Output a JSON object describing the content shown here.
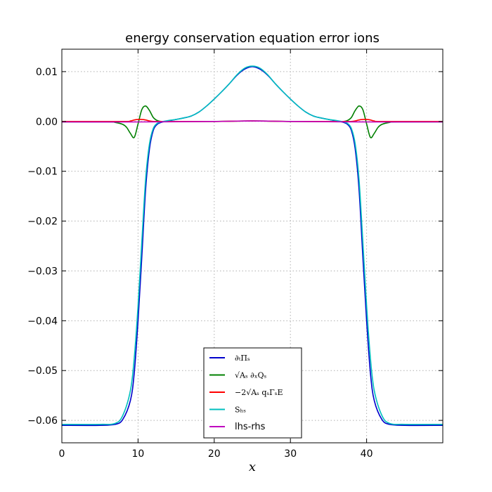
{
  "chart_data": {
    "type": "line",
    "title": "energy conservation equation error ions",
    "xlabel": "x",
    "ylabel": "",
    "xlim": [
      0,
      50
    ],
    "ylim": [
      -0.0645,
      0.0145
    ],
    "xticks": [
      0,
      10,
      20,
      30,
      40
    ],
    "xtick_labels": [
      "0",
      "10",
      "20",
      "30",
      "40"
    ],
    "yticks": [
      0.01,
      0.0,
      -0.01,
      -0.02,
      -0.03,
      -0.04,
      -0.05,
      -0.06
    ],
    "ytick_labels": [
      "0.01",
      "0.00",
      "−0.01",
      "−0.02",
      "−0.03",
      "−0.04",
      "−0.05",
      "−0.06"
    ],
    "grid": true,
    "legend_position": "lower-center",
    "series": [
      {
        "name": "∂ₜΠₛ",
        "color": "#0000cc",
        "x": [
          0,
          5,
          7,
          8,
          9,
          9.5,
          10,
          10.5,
          11,
          11.5,
          12,
          12.5,
          13,
          14,
          15,
          16,
          17,
          18,
          19,
          20,
          21,
          22,
          23,
          24,
          25,
          26,
          27,
          28,
          29,
          30,
          31,
          32,
          33,
          34,
          35,
          36,
          37,
          37.5,
          38,
          38.5,
          39,
          39.5,
          40,
          40.5,
          41,
          42,
          43,
          45,
          50
        ],
        "y": [
          -0.061,
          -0.061,
          -0.0608,
          -0.0598,
          -0.056,
          -0.0505,
          -0.04,
          -0.027,
          -0.0135,
          -0.0055,
          -0.0018,
          -0.0006,
          -0.0002,
          0.0001,
          0.0004,
          0.0007,
          0.0011,
          0.0019,
          0.0031,
          0.0045,
          0.006,
          0.0076,
          0.0093,
          0.0105,
          0.011,
          0.0105,
          0.0093,
          0.0076,
          0.006,
          0.0045,
          0.0031,
          0.0019,
          0.0011,
          0.0007,
          0.0004,
          0.0001,
          -0.0002,
          -0.0006,
          -0.0018,
          -0.0055,
          -0.0135,
          -0.027,
          -0.04,
          -0.0505,
          -0.056,
          -0.0598,
          -0.0608,
          -0.061,
          -0.061
        ]
      },
      {
        "name": "√Aₛ ∂ₓQₛ",
        "color": "#008000",
        "x": [
          0,
          6,
          7,
          8,
          8.5,
          9,
          9.5,
          10,
          10.5,
          11,
          11.5,
          12,
          12.5,
          13,
          14,
          15,
          20,
          25,
          30,
          35,
          36,
          37,
          37.5,
          38,
          38.5,
          39,
          39.5,
          40,
          40.5,
          41,
          41.5,
          42,
          43,
          44,
          50
        ],
        "y": [
          -0.0001,
          -0.0001,
          -0.0002,
          -0.0006,
          -0.0012,
          -0.0024,
          -0.0032,
          -0.0005,
          0.0024,
          0.0031,
          0.0022,
          0.0008,
          0.0002,
          0.0,
          0.0,
          0.0,
          0.0,
          0.0001,
          0.0,
          0.0,
          0.0,
          0.0,
          0.0002,
          0.0008,
          0.0022,
          0.0031,
          0.0024,
          -0.0005,
          -0.0032,
          -0.0024,
          -0.0012,
          -0.0006,
          -0.0002,
          -0.0001,
          -0.0001
        ]
      },
      {
        "name": "−2√Aₛ qₛΓₛE",
        "color": "#ff0000",
        "x": [
          0,
          8,
          9,
          9.5,
          10,
          10.5,
          11,
          11.5,
          12,
          13,
          20,
          25,
          30,
          37,
          38,
          38.5,
          39,
          39.5,
          40,
          40.5,
          41,
          42,
          50
        ],
        "y": [
          0.0,
          0.0,
          0.0001,
          0.0003,
          0.0004,
          0.0004,
          0.0003,
          0.0001,
          0.0,
          0.0,
          0.0,
          0.0001,
          0.0,
          0.0,
          0.0,
          0.0001,
          0.0003,
          0.0004,
          0.0004,
          0.0003,
          0.0001,
          0.0,
          0.0
        ]
      },
      {
        "name": "Sₕₛ",
        "color": "#00bfbf",
        "x": [
          0,
          5,
          7,
          8,
          9,
          9.5,
          10,
          10.5,
          11,
          11.5,
          12,
          12.5,
          13,
          14,
          15,
          16,
          17,
          18,
          19,
          20,
          21,
          22,
          23,
          24,
          25,
          26,
          27,
          28,
          29,
          30,
          31,
          32,
          33,
          34,
          35,
          36,
          37,
          37.5,
          38,
          38.5,
          39,
          39.5,
          40,
          40.5,
          41,
          42,
          43,
          45,
          50
        ],
        "y": [
          -0.0608,
          -0.0608,
          -0.0606,
          -0.059,
          -0.054,
          -0.0475,
          -0.037,
          -0.024,
          -0.0115,
          -0.0045,
          -0.0014,
          -0.0004,
          -0.0001,
          0.0002,
          0.0004,
          0.0007,
          0.0011,
          0.0019,
          0.0031,
          0.0045,
          0.006,
          0.0076,
          0.0094,
          0.0107,
          0.0111,
          0.0107,
          0.0094,
          0.0076,
          0.006,
          0.0045,
          0.0031,
          0.0019,
          0.0011,
          0.0007,
          0.0004,
          0.0002,
          -0.0001,
          -0.0004,
          -0.0014,
          -0.0045,
          -0.0115,
          -0.024,
          -0.037,
          -0.0475,
          -0.054,
          -0.059,
          -0.0606,
          -0.0608,
          -0.0608
        ]
      },
      {
        "name": "lhs-rhs",
        "color": "#bf00bf",
        "x": [
          0,
          10,
          20,
          25,
          30,
          40,
          50
        ],
        "y": [
          -0.0001,
          -0.0001,
          0.0,
          0.0001,
          0.0,
          -0.0001,
          -0.0001
        ]
      }
    ]
  }
}
